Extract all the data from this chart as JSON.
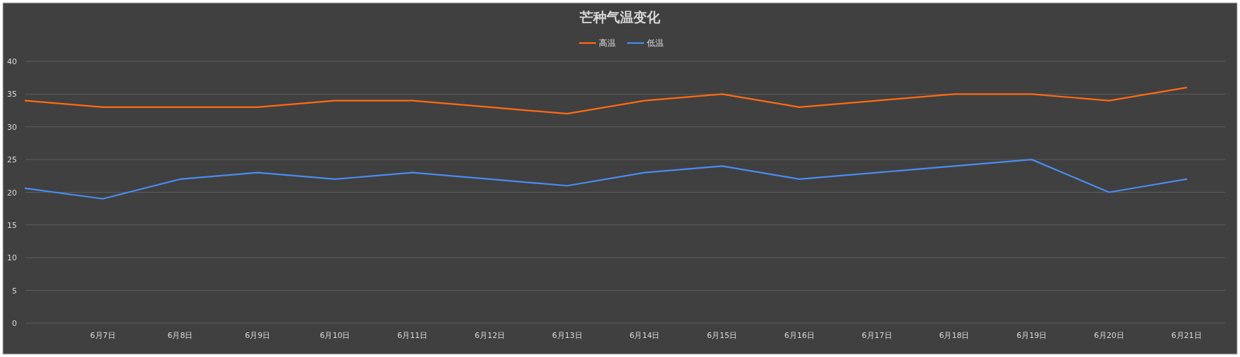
{
  "chart_data": {
    "type": "line",
    "title": "芒种气温变化",
    "categories": [
      null,
      "6月7日",
      "6月8日",
      "6月9日",
      "6月10日",
      "6月11日",
      "6月12日",
      "6月13日",
      "6月14日",
      "6月15日",
      "6月16日",
      "6月17日",
      "6月18日",
      "6月19日",
      "6月20日",
      "6月21日"
    ],
    "ylim": [
      0,
      40
    ],
    "yticks": [
      0,
      5,
      10,
      15,
      20,
      25,
      30,
      35,
      40
    ],
    "grid": "y",
    "legend": "top",
    "marker": "none",
    "line_style": "solid",
    "series": [
      {
        "name": "高温",
        "color": "#ff6a13",
        "values": [
          34,
          33,
          33,
          33,
          34,
          34,
          33,
          32,
          34,
          35,
          33,
          34,
          35,
          35,
          34,
          36
        ]
      },
      {
        "name": "低温",
        "color": "#4a8cf0",
        "values": [
          20.6,
          19,
          22,
          23,
          22,
          23,
          22,
          21,
          23,
          24,
          22,
          23,
          24,
          25,
          20,
          22
        ]
      }
    ]
  }
}
